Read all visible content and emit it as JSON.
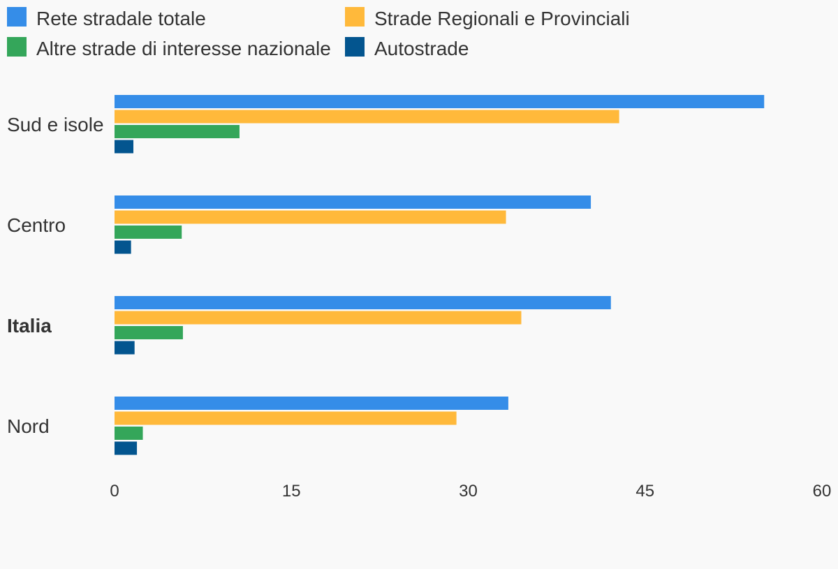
{
  "chart_data": {
    "type": "bar",
    "orientation": "horizontal",
    "title": "",
    "xlabel": "",
    "ylabel": "",
    "xlim": [
      0,
      60
    ],
    "ticks": [
      "0",
      "15",
      "30",
      "45",
      "60"
    ],
    "tick_values": [
      0,
      15,
      30,
      45,
      60
    ],
    "grid": false,
    "legend_position": "top",
    "categories": [
      "Sud e isole",
      "Centro",
      "Italia",
      "Nord"
    ],
    "highlighted_category": "Italia",
    "series": [
      {
        "name": "Rete stradale totale",
        "color": "#358de8",
        "values": [
          55.1,
          40.4,
          42.1,
          33.4
        ]
      },
      {
        "name": "Strade Regionali e Provinciali",
        "color": "#ffb93b",
        "values": [
          42.8,
          33.2,
          34.5,
          29.0
        ]
      },
      {
        "name": "Altre strade di interesse nazionale",
        "color": "#34a65a",
        "values": [
          10.6,
          5.7,
          5.8,
          2.4
        ]
      },
      {
        "name": "Autostrade",
        "color": "#03558f",
        "values": [
          1.6,
          1.4,
          1.7,
          1.9
        ]
      }
    ]
  }
}
